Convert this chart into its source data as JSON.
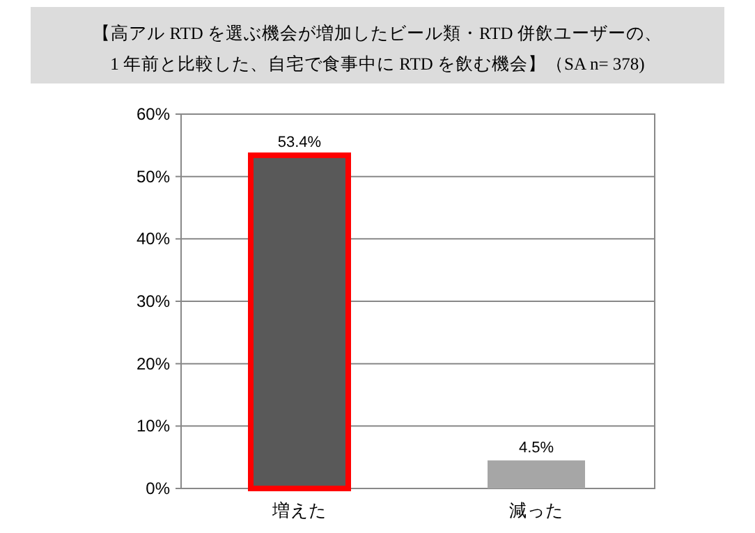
{
  "chart_data": {
    "type": "bar",
    "title": "【高アル RTD を選ぶ機会が増加したビール類・RTD 併飲ユーザーの、\n1 年前と比較した、自宅で食事中に RTD を飲む機会】（SA n= 378)",
    "categories": [
      "増えた",
      "減った"
    ],
    "values": [
      53.4,
      4.5
    ],
    "colors": [
      "#595959",
      "#a6a6a6"
    ],
    "value_labels": [
      "53.4%",
      "4.5%"
    ],
    "ylim": [
      0,
      60
    ],
    "yticks": [
      {
        "value": 0,
        "label": "0%"
      },
      {
        "value": 10,
        "label": "10%"
      },
      {
        "value": 20,
        "label": "20%"
      },
      {
        "value": 30,
        "label": "30%"
      },
      {
        "value": 40,
        "label": "40%"
      },
      {
        "value": 50,
        "label": "50%"
      },
      {
        "value": 60,
        "label": "60%"
      }
    ],
    "grid": "y"
  }
}
